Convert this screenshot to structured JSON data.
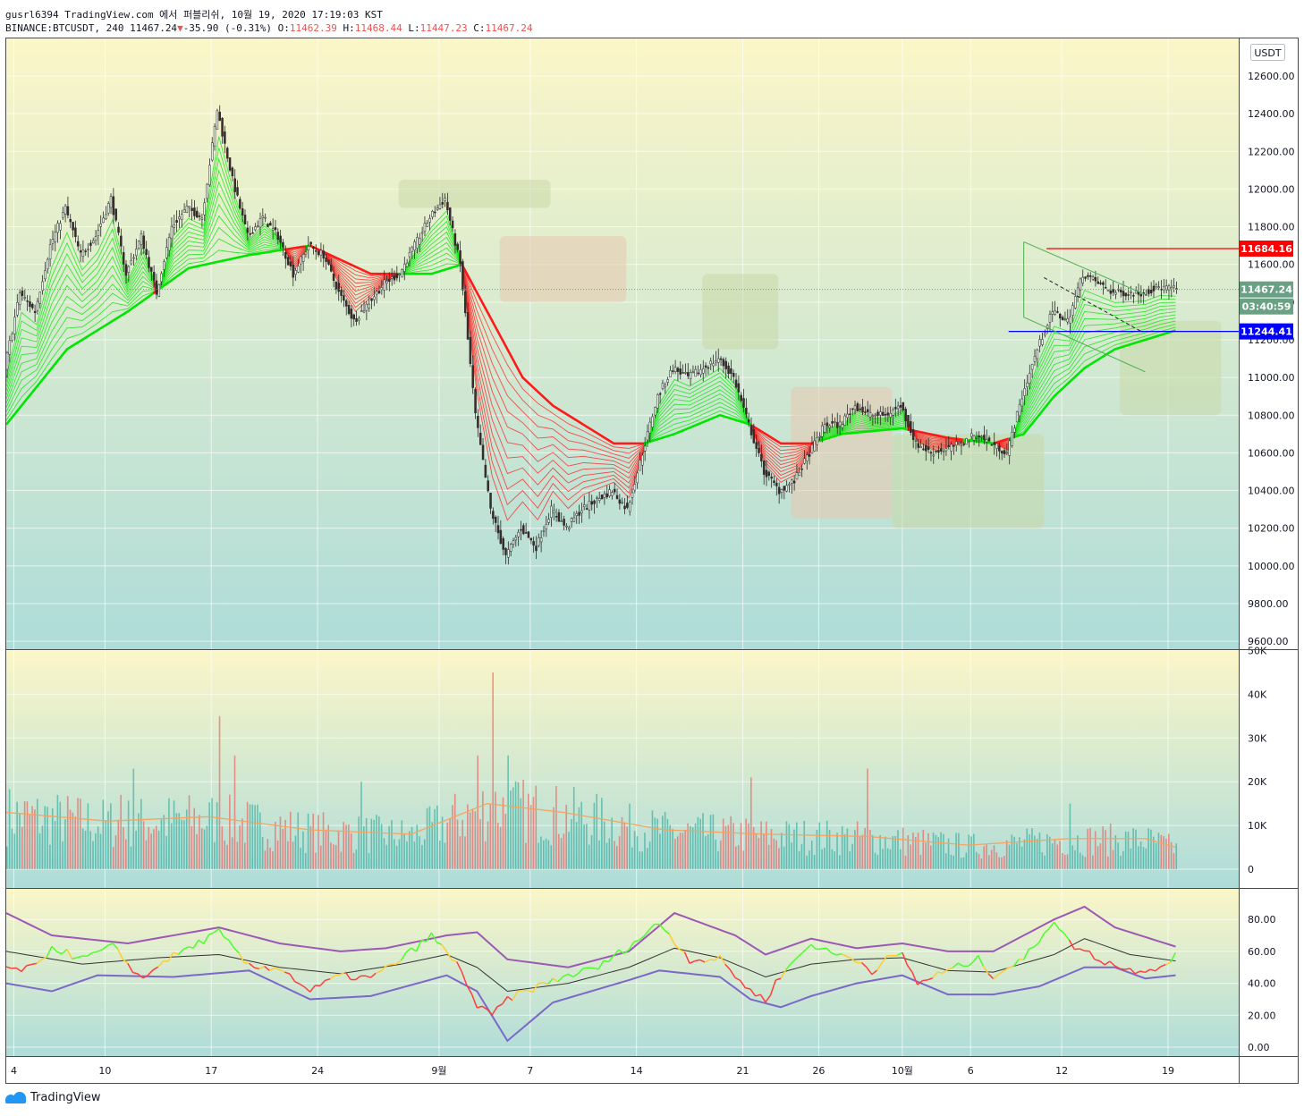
{
  "header": {
    "line1": "gusrl6394 TradingView.com 에서 퍼블리쉬, 10월 19, 2020 17:19:03 KST",
    "symbol": "BINANCE:BTCUSDT, 240",
    "last": "11467.24",
    "arrow": "▼",
    "change": "-35.90 (-0.31%)",
    "o_label": "O:",
    "o": "11462.39",
    "h_label": "H:",
    "h": "11468.44",
    "l_label": "L:",
    "l": "11447.23",
    "c_label": "C:",
    "c": "11467.24"
  },
  "footer": {
    "brand": "TradingView"
  },
  "colors": {
    "up": "#26a69a",
    "down": "#ef5350",
    "ribbon_up": "#00e600",
    "ribbon_down": "#ff1a1a",
    "bg_top": "#fbf6c8",
    "bg_bottom": "#aedcd9"
  },
  "chart_data": {
    "type": "candlestick",
    "currency": "USDT",
    "price_axis": {
      "ticks": [
        12600,
        12400,
        12200,
        12000,
        11800,
        11600,
        11400,
        11200,
        11000,
        10800,
        10600,
        10400,
        10200,
        10000,
        9800,
        9600
      ],
      "tick_labels": [
        "12600.00",
        "12400.00",
        "12200.00",
        "12000.00",
        "11800.00",
        "11600.00",
        "11400.00",
        "11200.00",
        "11000.00",
        "10800.00",
        "10600.00",
        "10400.00",
        "10200.00",
        "10000.00",
        "9800.00",
        "9600.00"
      ],
      "range": [
        9590,
        12800
      ]
    },
    "price_labels": [
      {
        "value": 11684.16,
        "text": "11684.16",
        "color": "#ff0000"
      },
      {
        "value": 11467.24,
        "text": "11467.24",
        "color": "#6aa084"
      },
      {
        "value": 11377,
        "text": "03:40:59",
        "color": "#6aa084"
      },
      {
        "value": 11244.41,
        "text": "11244.41",
        "color": "#0000ff"
      }
    ],
    "x_axis": {
      "labels": [
        "4",
        "10",
        "17",
        "24",
        "9월",
        "7",
        "14",
        "21",
        "26",
        "10월",
        "6",
        "12",
        "19"
      ],
      "positions": [
        3,
        39,
        81,
        123,
        171,
        207,
        249,
        291,
        321,
        354,
        381,
        417,
        459
      ]
    },
    "price_path": [
      [
        0,
        11050
      ],
      [
        6,
        11450
      ],
      [
        12,
        11350
      ],
      [
        18,
        11700
      ],
      [
        24,
        11900
      ],
      [
        30,
        11650
      ],
      [
        36,
        11750
      ],
      [
        42,
        11950
      ],
      [
        48,
        11550
      ],
      [
        54,
        11750
      ],
      [
        60,
        11450
      ],
      [
        66,
        11800
      ],
      [
        72,
        11900
      ],
      [
        78,
        11850
      ],
      [
        84,
        12420
      ],
      [
        90,
        12050
      ],
      [
        96,
        11750
      ],
      [
        102,
        11850
      ],
      [
        108,
        11750
      ],
      [
        114,
        11550
      ],
      [
        120,
        11700
      ],
      [
        126,
        11650
      ],
      [
        132,
        11450
      ],
      [
        138,
        11300
      ],
      [
        144,
        11400
      ],
      [
        150,
        11500
      ],
      [
        156,
        11550
      ],
      [
        162,
        11700
      ],
      [
        168,
        11850
      ],
      [
        174,
        11950
      ],
      [
        180,
        11600
      ],
      [
        186,
        10800
      ],
      [
        192,
        10300
      ],
      [
        198,
        10050
      ],
      [
        204,
        10200
      ],
      [
        210,
        10100
      ],
      [
        216,
        10300
      ],
      [
        222,
        10200
      ],
      [
        228,
        10300
      ],
      [
        234,
        10350
      ],
      [
        240,
        10400
      ],
      [
        246,
        10300
      ],
      [
        252,
        10600
      ],
      [
        258,
        10900
      ],
      [
        264,
        11050
      ],
      [
        270,
        11000
      ],
      [
        276,
        11050
      ],
      [
        282,
        11100
      ],
      [
        288,
        11000
      ],
      [
        294,
        10750
      ],
      [
        300,
        10500
      ],
      [
        306,
        10400
      ],
      [
        312,
        10450
      ],
      [
        318,
        10600
      ],
      [
        324,
        10750
      ],
      [
        330,
        10750
      ],
      [
        336,
        10850
      ],
      [
        342,
        10800
      ],
      [
        348,
        10800
      ],
      [
        354,
        10850
      ],
      [
        360,
        10650
      ],
      [
        366,
        10600
      ],
      [
        372,
        10620
      ],
      [
        378,
        10650
      ],
      [
        384,
        10700
      ],
      [
        390,
        10650
      ],
      [
        396,
        10600
      ],
      [
        402,
        10900
      ],
      [
        408,
        11150
      ],
      [
        414,
        11350
      ],
      [
        420,
        11300
      ],
      [
        426,
        11550
      ],
      [
        432,
        11500
      ],
      [
        438,
        11450
      ],
      [
        444,
        11450
      ],
      [
        450,
        11450
      ],
      [
        456,
        11480
      ],
      [
        462,
        11470
      ]
    ],
    "ribbon_path": [
      [
        0,
        10750
      ],
      [
        24,
        11150
      ],
      [
        48,
        11350
      ],
      [
        72,
        11580
      ],
      [
        96,
        11650
      ],
      [
        120,
        11700
      ],
      [
        144,
        11550
      ],
      [
        168,
        11550
      ],
      [
        180,
        11600
      ],
      [
        192,
        11300
      ],
      [
        204,
        11000
      ],
      [
        216,
        10850
      ],
      [
        228,
        10750
      ],
      [
        240,
        10650
      ],
      [
        252,
        10650
      ],
      [
        264,
        10700
      ],
      [
        282,
        10800
      ],
      [
        294,
        10750
      ],
      [
        306,
        10650
      ],
      [
        318,
        10650
      ],
      [
        330,
        10700
      ],
      [
        354,
        10730
      ],
      [
        372,
        10680
      ],
      [
        390,
        10650
      ],
      [
        402,
        10700
      ],
      [
        414,
        10900
      ],
      [
        426,
        11050
      ],
      [
        438,
        11150
      ],
      [
        450,
        11200
      ],
      [
        462,
        11250
      ]
    ],
    "volume_axis": {
      "ticks": [
        0,
        10000,
        20000,
        30000,
        40000,
        50000
      ],
      "tick_labels": [
        "0",
        "10K",
        "20K",
        "30K",
        "40K",
        "50K"
      ]
    },
    "volume_ma_path": [
      [
        0,
        13000
      ],
      [
        40,
        11000
      ],
      [
        80,
        12000
      ],
      [
        120,
        9000
      ],
      [
        160,
        8000
      ],
      [
        190,
        15000
      ],
      [
        220,
        13000
      ],
      [
        260,
        9000
      ],
      [
        300,
        8000
      ],
      [
        340,
        7500
      ],
      [
        380,
        5500
      ],
      [
        420,
        7000
      ],
      [
        450,
        7000
      ],
      [
        462,
        5000
      ]
    ],
    "volume_spikes": [
      [
        45,
        17000
      ],
      [
        50,
        23000
      ],
      [
        84,
        35000
      ],
      [
        90,
        26000
      ],
      [
        140,
        20000
      ],
      [
        186,
        26000
      ],
      [
        192,
        45000
      ],
      [
        198,
        26000
      ],
      [
        246,
        15000
      ],
      [
        294,
        21000
      ],
      [
        340,
        23000
      ],
      [
        420,
        15000
      ]
    ],
    "oscillator_axis": {
      "ticks": [
        0,
        20,
        40,
        60,
        80
      ],
      "tick_labels": [
        "0.00",
        "20.00",
        "40.00",
        "60.00",
        "80.00"
      ],
      "range": [
        -5,
        95
      ]
    },
    "rsi_path": [
      [
        0,
        48
      ],
      [
        12,
        50
      ],
      [
        18,
        63
      ],
      [
        30,
        55
      ],
      [
        42,
        63
      ],
      [
        54,
        42
      ],
      [
        60,
        52
      ],
      [
        66,
        57
      ],
      [
        84,
        72
      ],
      [
        96,
        50
      ],
      [
        108,
        50
      ],
      [
        120,
        35
      ],
      [
        132,
        45
      ],
      [
        144,
        43
      ],
      [
        156,
        55
      ],
      [
        168,
        70
      ],
      [
        180,
        48
      ],
      [
        186,
        25
      ],
      [
        192,
        20
      ],
      [
        198,
        30
      ],
      [
        210,
        38
      ],
      [
        222,
        45
      ],
      [
        234,
        50
      ],
      [
        252,
        70
      ],
      [
        258,
        78
      ],
      [
        270,
        55
      ],
      [
        282,
        55
      ],
      [
        294,
        35
      ],
      [
        300,
        30
      ],
      [
        306,
        45
      ],
      [
        318,
        65
      ],
      [
        324,
        60
      ],
      [
        336,
        55
      ],
      [
        342,
        48
      ],
      [
        348,
        55
      ],
      [
        354,
        58
      ],
      [
        360,
        40
      ],
      [
        372,
        48
      ],
      [
        384,
        55
      ],
      [
        390,
        45
      ],
      [
        402,
        55
      ],
      [
        414,
        80
      ],
      [
        420,
        65
      ],
      [
        432,
        55
      ],
      [
        444,
        48
      ],
      [
        456,
        50
      ],
      [
        462,
        58
      ]
    ],
    "bb_upper_path": [
      [
        0,
        84
      ],
      [
        18,
        70
      ],
      [
        48,
        65
      ],
      [
        84,
        75
      ],
      [
        108,
        65
      ],
      [
        132,
        60
      ],
      [
        150,
        62
      ],
      [
        174,
        70
      ],
      [
        186,
        72
      ],
      [
        198,
        55
      ],
      [
        222,
        50
      ],
      [
        246,
        60
      ],
      [
        264,
        84
      ],
      [
        288,
        70
      ],
      [
        300,
        58
      ],
      [
        318,
        68
      ],
      [
        336,
        62
      ],
      [
        354,
        65
      ],
      [
        372,
        60
      ],
      [
        390,
        60
      ],
      [
        414,
        80
      ],
      [
        426,
        88
      ],
      [
        438,
        75
      ],
      [
        462,
        63
      ]
    ],
    "bb_lower_path": [
      [
        0,
        40
      ],
      [
        18,
        35
      ],
      [
        36,
        45
      ],
      [
        66,
        44
      ],
      [
        96,
        48
      ],
      [
        120,
        30
      ],
      [
        144,
        32
      ],
      [
        174,
        45
      ],
      [
        186,
        35
      ],
      [
        198,
        4
      ],
      [
        216,
        28
      ],
      [
        246,
        42
      ],
      [
        258,
        48
      ],
      [
        282,
        44
      ],
      [
        294,
        30
      ],
      [
        306,
        25
      ],
      [
        318,
        32
      ],
      [
        336,
        40
      ],
      [
        354,
        45
      ],
      [
        372,
        33
      ],
      [
        390,
        33
      ],
      [
        408,
        38
      ],
      [
        426,
        50
      ],
      [
        438,
        50
      ],
      [
        450,
        43
      ],
      [
        462,
        45
      ]
    ],
    "bb_mid_path": [
      [
        0,
        60
      ],
      [
        30,
        52
      ],
      [
        60,
        56
      ],
      [
        84,
        58
      ],
      [
        108,
        50
      ],
      [
        132,
        46
      ],
      [
        156,
        52
      ],
      [
        174,
        58
      ],
      [
        186,
        50
      ],
      [
        198,
        35
      ],
      [
        222,
        40
      ],
      [
        246,
        50
      ],
      [
        264,
        62
      ],
      [
        282,
        56
      ],
      [
        300,
        44
      ],
      [
        318,
        52
      ],
      [
        336,
        55
      ],
      [
        354,
        56
      ],
      [
        372,
        48
      ],
      [
        390,
        47
      ],
      [
        414,
        58
      ],
      [
        426,
        68
      ],
      [
        444,
        58
      ],
      [
        462,
        54
      ]
    ],
    "drawings": {
      "resistance": {
        "value": 11684.16,
        "x": [
          411,
          464
        ]
      },
      "support": {
        "value": 11244.41,
        "x": [
          396,
          464
        ]
      },
      "channel_upper": [
        [
          402,
          11720
        ],
        [
          450,
          11440
        ]
      ],
      "channel_lower": [
        [
          402,
          11320
        ],
        [
          450,
          11030
        ]
      ],
      "dashed": [
        [
          410,
          11530
        ],
        [
          449,
          11240
        ]
      ]
    }
  }
}
